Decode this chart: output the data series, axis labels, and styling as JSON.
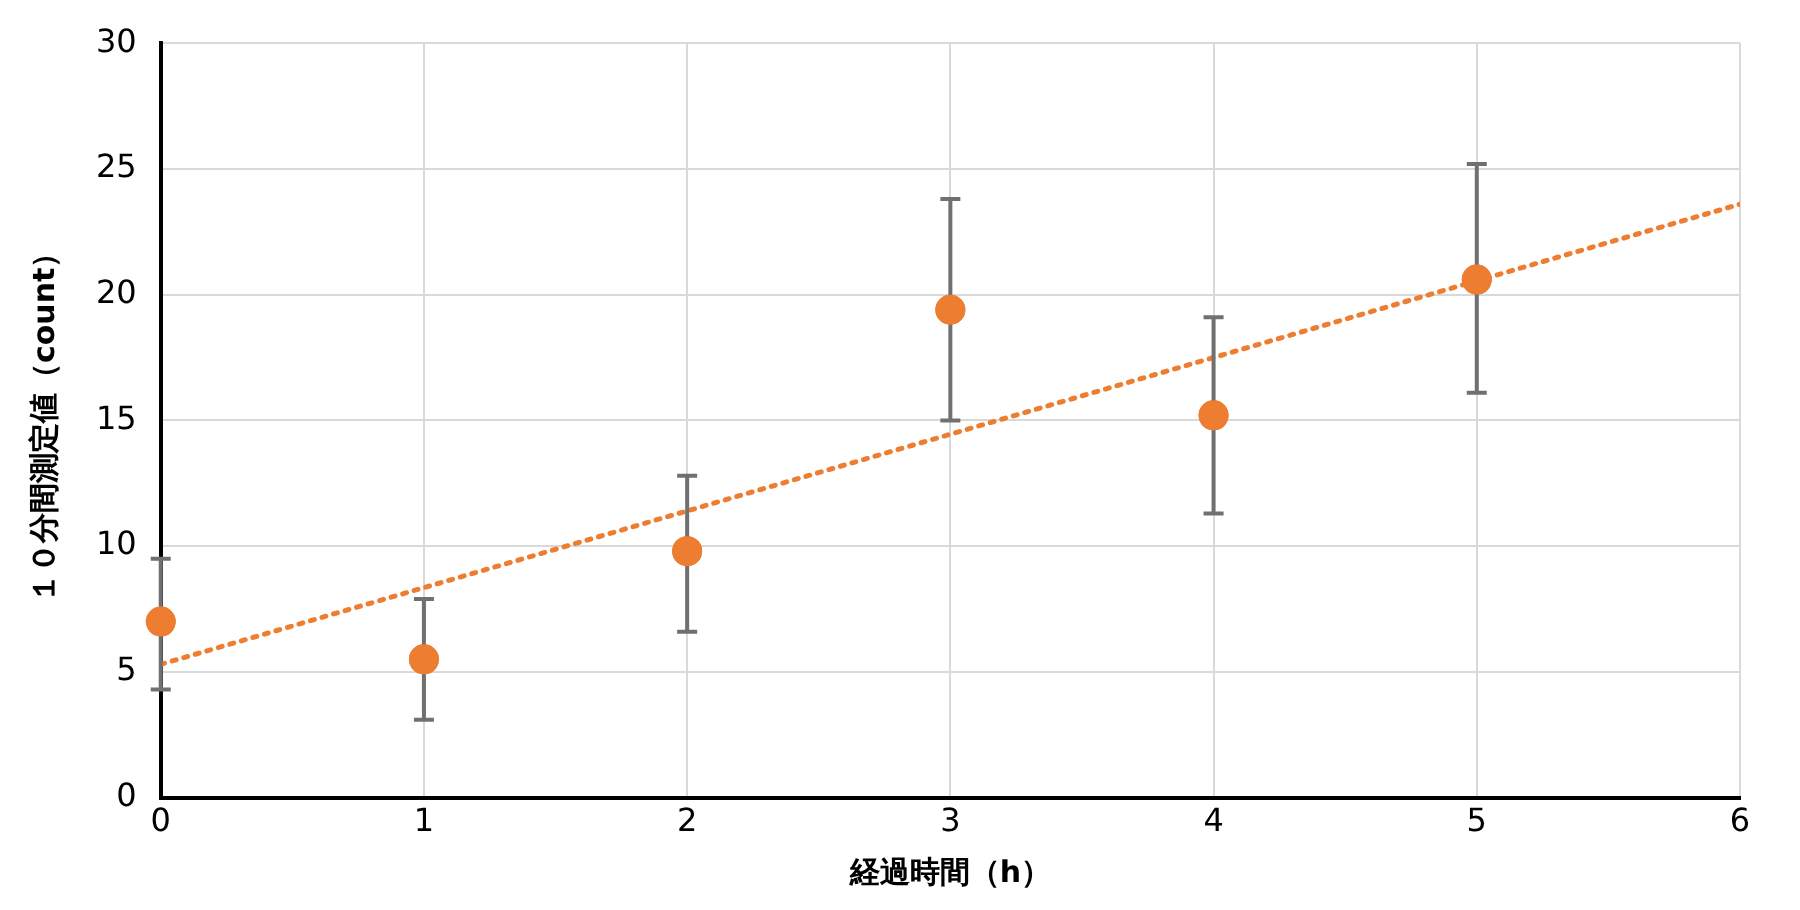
{
  "chart_data": {
    "type": "scatter",
    "xlabel": "経過時間（h）",
    "ylabel": "１０分間測定値（count）",
    "xlim": [
      0,
      6
    ],
    "xticks": [
      0,
      1,
      2,
      3,
      4,
      5,
      6
    ],
    "ylim": [
      0,
      30
    ],
    "yticks": [
      0,
      5,
      10,
      15,
      20,
      25,
      30
    ],
    "grid": true,
    "legend": false,
    "series": [
      {
        "color": "#ed7d31",
        "marker": "circle",
        "x": [
          0,
          1,
          2,
          3,
          4,
          5
        ],
        "values": [
          7.0,
          5.5,
          9.8,
          19.4,
          15.2,
          20.6
        ],
        "errors": [
          [
            4.3,
            9.5
          ],
          [
            3.1,
            7.9
          ],
          [
            6.6,
            12.8
          ],
          [
            15.0,
            23.8
          ],
          [
            11.3,
            19.1
          ],
          [
            16.1,
            25.2
          ]
        ]
      },
      {
        "type": "line",
        "color": "#ed7d31",
        "line_style": "dotted",
        "marker": "none",
        "x": [
          0,
          6
        ],
        "values": [
          5.3,
          23.6
        ]
      }
    ]
  }
}
